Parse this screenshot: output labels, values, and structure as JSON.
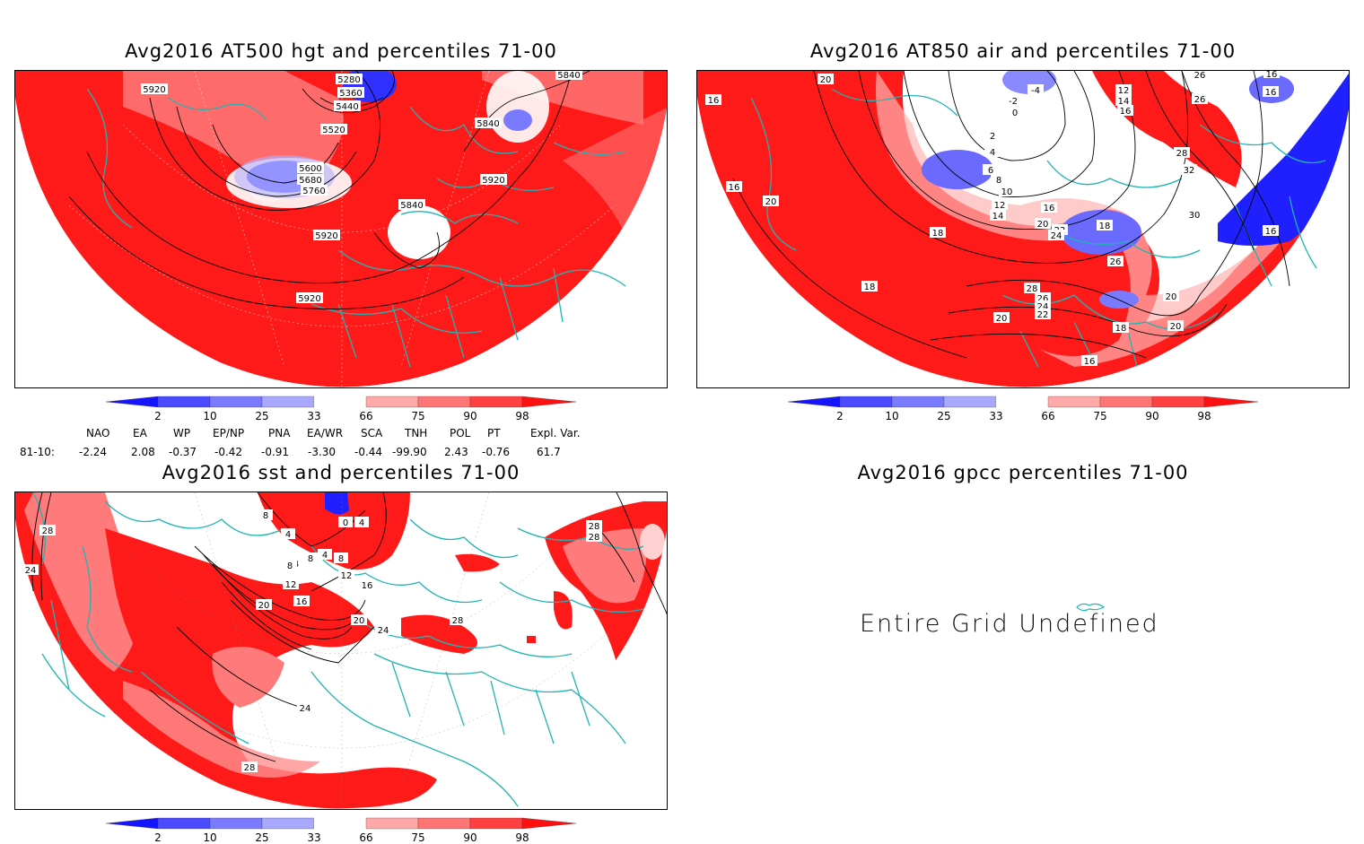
{
  "panels": [
    {
      "id": "hgt",
      "title": "Avg2016 AT500 hgt and percentiles 71-00",
      "contour_labels": [
        "5280",
        "5360",
        "5440",
        "5520",
        "5600",
        "5680",
        "5760",
        "5840",
        "5840",
        "5920",
        "5920",
        "5920",
        "5920",
        "5840"
      ]
    },
    {
      "id": "air",
      "title": "Avg2016 AT850 air and percentiles 71-00",
      "contour_labels": [
        "20",
        "16",
        "16",
        "20",
        "-4",
        "-2",
        "0",
        "2",
        "4",
        "6",
        "8",
        "10",
        "12",
        "14",
        "16",
        "20",
        "22",
        "24",
        "18",
        "18",
        "18",
        "26",
        "28",
        "26",
        "24",
        "22",
        "20",
        "18",
        "16",
        "20",
        "20",
        "30",
        "32",
        "28",
        "26",
        "16",
        "16",
        "12",
        "14",
        "16",
        "26",
        "16"
      ]
    },
    {
      "id": "sst",
      "title": "Avg2016 sst and percentiles 71-00",
      "contour_labels": [
        "28",
        "24",
        "8",
        "4",
        "4",
        "0",
        "4",
        "8",
        "8",
        "4",
        "8",
        "12",
        "12",
        "16",
        "16",
        "20",
        "20",
        "24",
        "28",
        "24",
        "28",
        "28",
        "28"
      ]
    },
    {
      "id": "gpcc",
      "title": "Avg2016 gpcc percentiles 71-00",
      "message": "Entire Grid Undefined"
    }
  ],
  "colorbar": {
    "labels": [
      "2",
      "10",
      "25",
      "33",
      "66",
      "75",
      "90",
      "98"
    ],
    "colors": {
      "c2": "#1414ff",
      "c10": "#4a4aff",
      "c25": "#7a7aff",
      "c33": "#a8a8ff",
      "c66": "#ffa8a8",
      "c75": "#ff7474",
      "c90": "#ff4040",
      "c98": "#ff1010"
    }
  },
  "indices": {
    "headers": [
      "NAO",
      "EA",
      "WP",
      "EP/NP",
      "PNA",
      "EA/WR",
      "SCA",
      "TNH",
      "POL",
      "PT",
      "Expl. Var."
    ],
    "row_label": "81-10:",
    "values": [
      "-2.24",
      "2.08",
      "-0.37",
      "-0.42",
      "-0.91",
      "-3.30",
      "-0.44",
      "-99.90",
      "2.43",
      "-0.76",
      "61.7"
    ]
  },
  "colors": {
    "map_red": "#ff1a1a",
    "light_red": "#ff7a7a",
    "pale_red": "#ffb4b4",
    "blue": "#2020ff",
    "mid_blue": "#6a6aff",
    "pale_blue": "#b0b0ff",
    "coast": "#20b4b4",
    "contour": "#000000"
  }
}
